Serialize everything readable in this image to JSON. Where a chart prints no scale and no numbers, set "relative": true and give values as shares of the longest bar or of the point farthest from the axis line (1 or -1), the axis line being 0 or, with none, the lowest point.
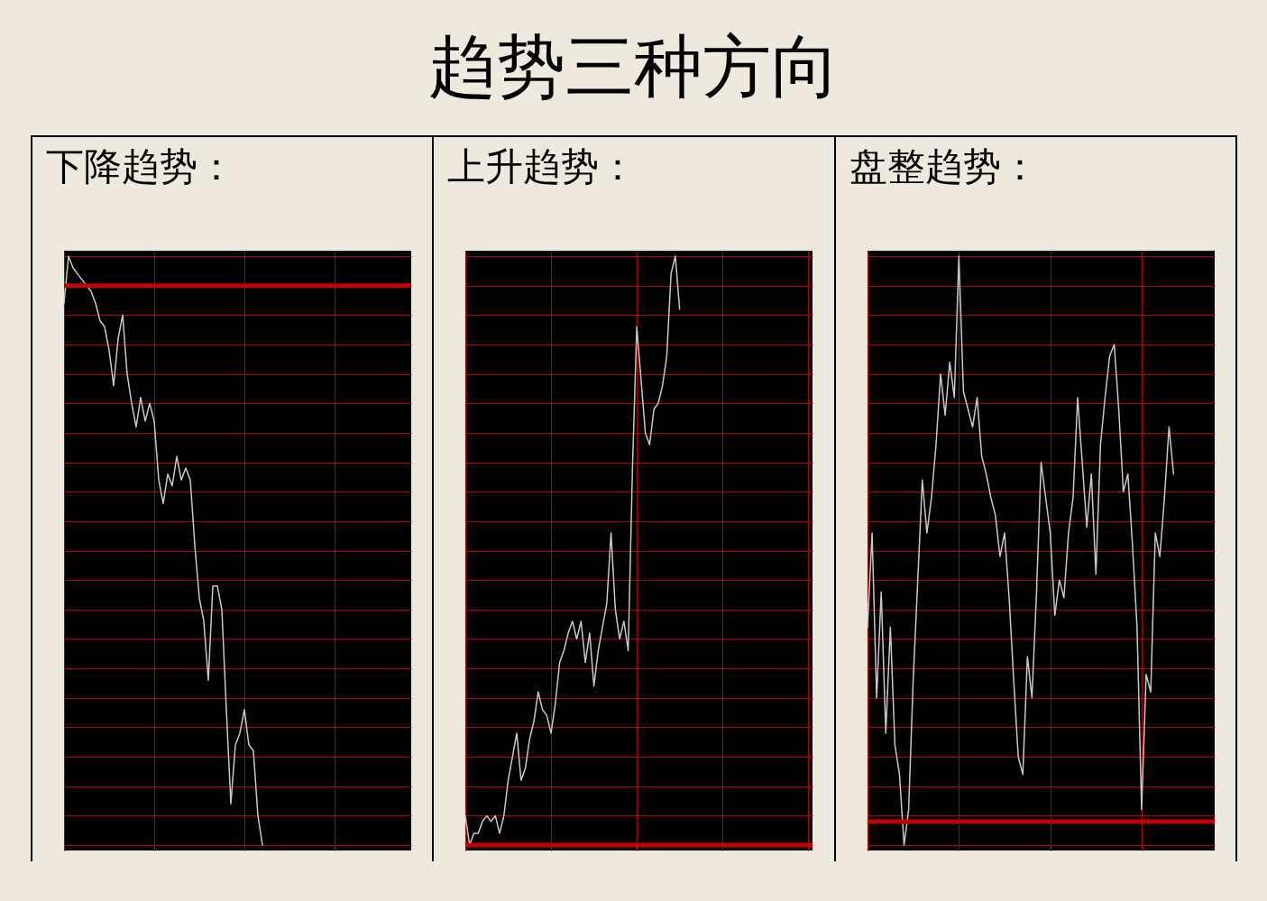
{
  "chart_data": [
    {
      "type": "other",
      "title": "趋势三种方向"
    },
    {
      "type": "line",
      "title": "下降趋势：",
      "relative": true,
      "grid": true,
      "categories": [
        null,
        null,
        null,
        null,
        null,
        null,
        null,
        null,
        null,
        null,
        null,
        null,
        null,
        null,
        null,
        null,
        null,
        null,
        null,
        null,
        null,
        null,
        null,
        null,
        null,
        null,
        null,
        null,
        null,
        null,
        null,
        null,
        null,
        null,
        null,
        null,
        null,
        null,
        null,
        null,
        null,
        null,
        null,
        null,
        null,
        null,
        null,
        null,
        null,
        null,
        null,
        null,
        null,
        null,
        null,
        null,
        null,
        null,
        null,
        null,
        null,
        null,
        null,
        null,
        null,
        null,
        null,
        null,
        null,
        null,
        null,
        null,
        null,
        null,
        null,
        null,
        null,
        null
      ],
      "series": [
        {
          "color": "#c8c8c8",
          "values": [
            0.92,
            1.0,
            0.98,
            0.97,
            0.96,
            0.95,
            0.94,
            0.92,
            0.89,
            0.88,
            0.84,
            0.78,
            0.86,
            0.9,
            0.8,
            0.75,
            0.71,
            0.76,
            0.72,
            0.75,
            0.72,
            0.62,
            0.58,
            0.63,
            0.61,
            0.66,
            0.62,
            0.64,
            0.62,
            0.51,
            0.42,
            0.38,
            0.28,
            0.44,
            0.44,
            0.4,
            0.23,
            0.07,
            0.17,
            0.19,
            0.23,
            0.17,
            0.16,
            0.05,
            0,
            null,
            null,
            null,
            null,
            null,
            null,
            null,
            null,
            null,
            null,
            null,
            null,
            null,
            null,
            null,
            null,
            null,
            null,
            null,
            null,
            null,
            null,
            null,
            null,
            null,
            null,
            null,
            null,
            null,
            null,
            null,
            null,
            null
          ]
        }
      ],
      "ref_lines": [
        {
          "axis": "y",
          "value": 0.95,
          "color": "#c00000"
        }
      ]
    },
    {
      "type": "line",
      "title": "上升趋势：",
      "relative": true,
      "grid": true,
      "categories": [
        null,
        null,
        null,
        null,
        null,
        null,
        null,
        null,
        null,
        null,
        null,
        null,
        null,
        null,
        null,
        null,
        null,
        null,
        null,
        null,
        null,
        null,
        null,
        null,
        null,
        null,
        null,
        null,
        null,
        null,
        null,
        null,
        null,
        null,
        null,
        null,
        null,
        null,
        null,
        null,
        null,
        null,
        null,
        null,
        null,
        null,
        null,
        null,
        null,
        null,
        null,
        null,
        null,
        null,
        null,
        null,
        null,
        null,
        null,
        null,
        null,
        null,
        null,
        null,
        null,
        null,
        null,
        null,
        null,
        null,
        null,
        null,
        null,
        null,
        null,
        null,
        null,
        null,
        null,
        null,
        null,
        null
      ],
      "series": [
        {
          "color": "#c8c8c8",
          "values": [
            0.05,
            0,
            0.02,
            0.02,
            0.04,
            0.05,
            0.04,
            0.05,
            0.02,
            0.05,
            0.11,
            0.15,
            0.19,
            0.11,
            0.13,
            0.18,
            0.21,
            0.26,
            0.23,
            0.22,
            0.19,
            0.24,
            0.31,
            0.33,
            0.36,
            0.38,
            0.35,
            0.38,
            0.31,
            0.36,
            0.27,
            0.33,
            0.37,
            0.41,
            0.53,
            0.4,
            0.35,
            0.38,
            0.33,
            0.64,
            0.88,
            0.79,
            0.7,
            0.68,
            0.74,
            0.75,
            0.78,
            0.83,
            0.97,
            1.0,
            0.91,
            null,
            null,
            null,
            null,
            null,
            null,
            null,
            null,
            null,
            null,
            null,
            null,
            null,
            null,
            null,
            null,
            null,
            null,
            null,
            null,
            null,
            null,
            null,
            null,
            null,
            null,
            null,
            null,
            null,
            null,
            null
          ]
        }
      ],
      "ref_lines": [
        {
          "axis": "y",
          "value": 0,
          "color": "#c00000"
        }
      ]
    },
    {
      "type": "line",
      "title": "盘整趋势：",
      "relative": true,
      "grid": true,
      "categories": [
        null,
        null,
        null,
        null,
        null,
        null,
        null,
        null,
        null,
        null,
        null,
        null,
        null,
        null,
        null,
        null,
        null,
        null,
        null,
        null,
        null,
        null,
        null,
        null,
        null,
        null,
        null,
        null,
        null,
        null,
        null,
        null,
        null,
        null,
        null,
        null,
        null,
        null,
        null,
        null,
        null,
        null,
        null,
        null,
        null,
        null,
        null,
        null,
        null,
        null,
        null,
        null,
        null,
        null,
        null,
        null,
        null,
        null,
        null,
        null,
        null,
        null,
        null,
        null,
        null,
        null,
        null,
        null,
        null,
        null,
        null,
        null,
        null,
        null,
        null,
        null,
        null
      ],
      "series": [
        {
          "color": "#c8c8c8",
          "values": [
            0.37,
            0.53,
            0.25,
            0.43,
            0.19,
            0.37,
            0.17,
            0.12,
            0,
            0.06,
            0.28,
            0.45,
            0.62,
            0.53,
            0.59,
            0.68,
            0.8,
            0.73,
            0.82,
            0.76,
            1.0,
            0.77,
            0.74,
            0.71,
            0.76,
            0.66,
            0.63,
            0.59,
            0.56,
            0.49,
            0.53,
            0.42,
            0.28,
            0.15,
            0.12,
            0.32,
            0.25,
            0.43,
            0.65,
            0.59,
            0.53,
            0.39,
            0.45,
            0.42,
            0.53,
            0.59,
            0.76,
            0.65,
            0.54,
            0.63,
            0.46,
            0.68,
            0.76,
            0.83,
            0.85,
            0.74,
            0.6,
            0.63,
            0.51,
            0.37,
            0.06,
            0.29,
            0.26,
            0.53,
            0.49,
            0.59,
            0.71,
            0.63,
            null,
            null,
            null,
            null,
            null,
            null,
            null,
            null,
            null
          ]
        }
      ],
      "ref_lines": [
        {
          "axis": "y",
          "value": 0.04,
          "color": "#c00000"
        }
      ]
    }
  ]
}
